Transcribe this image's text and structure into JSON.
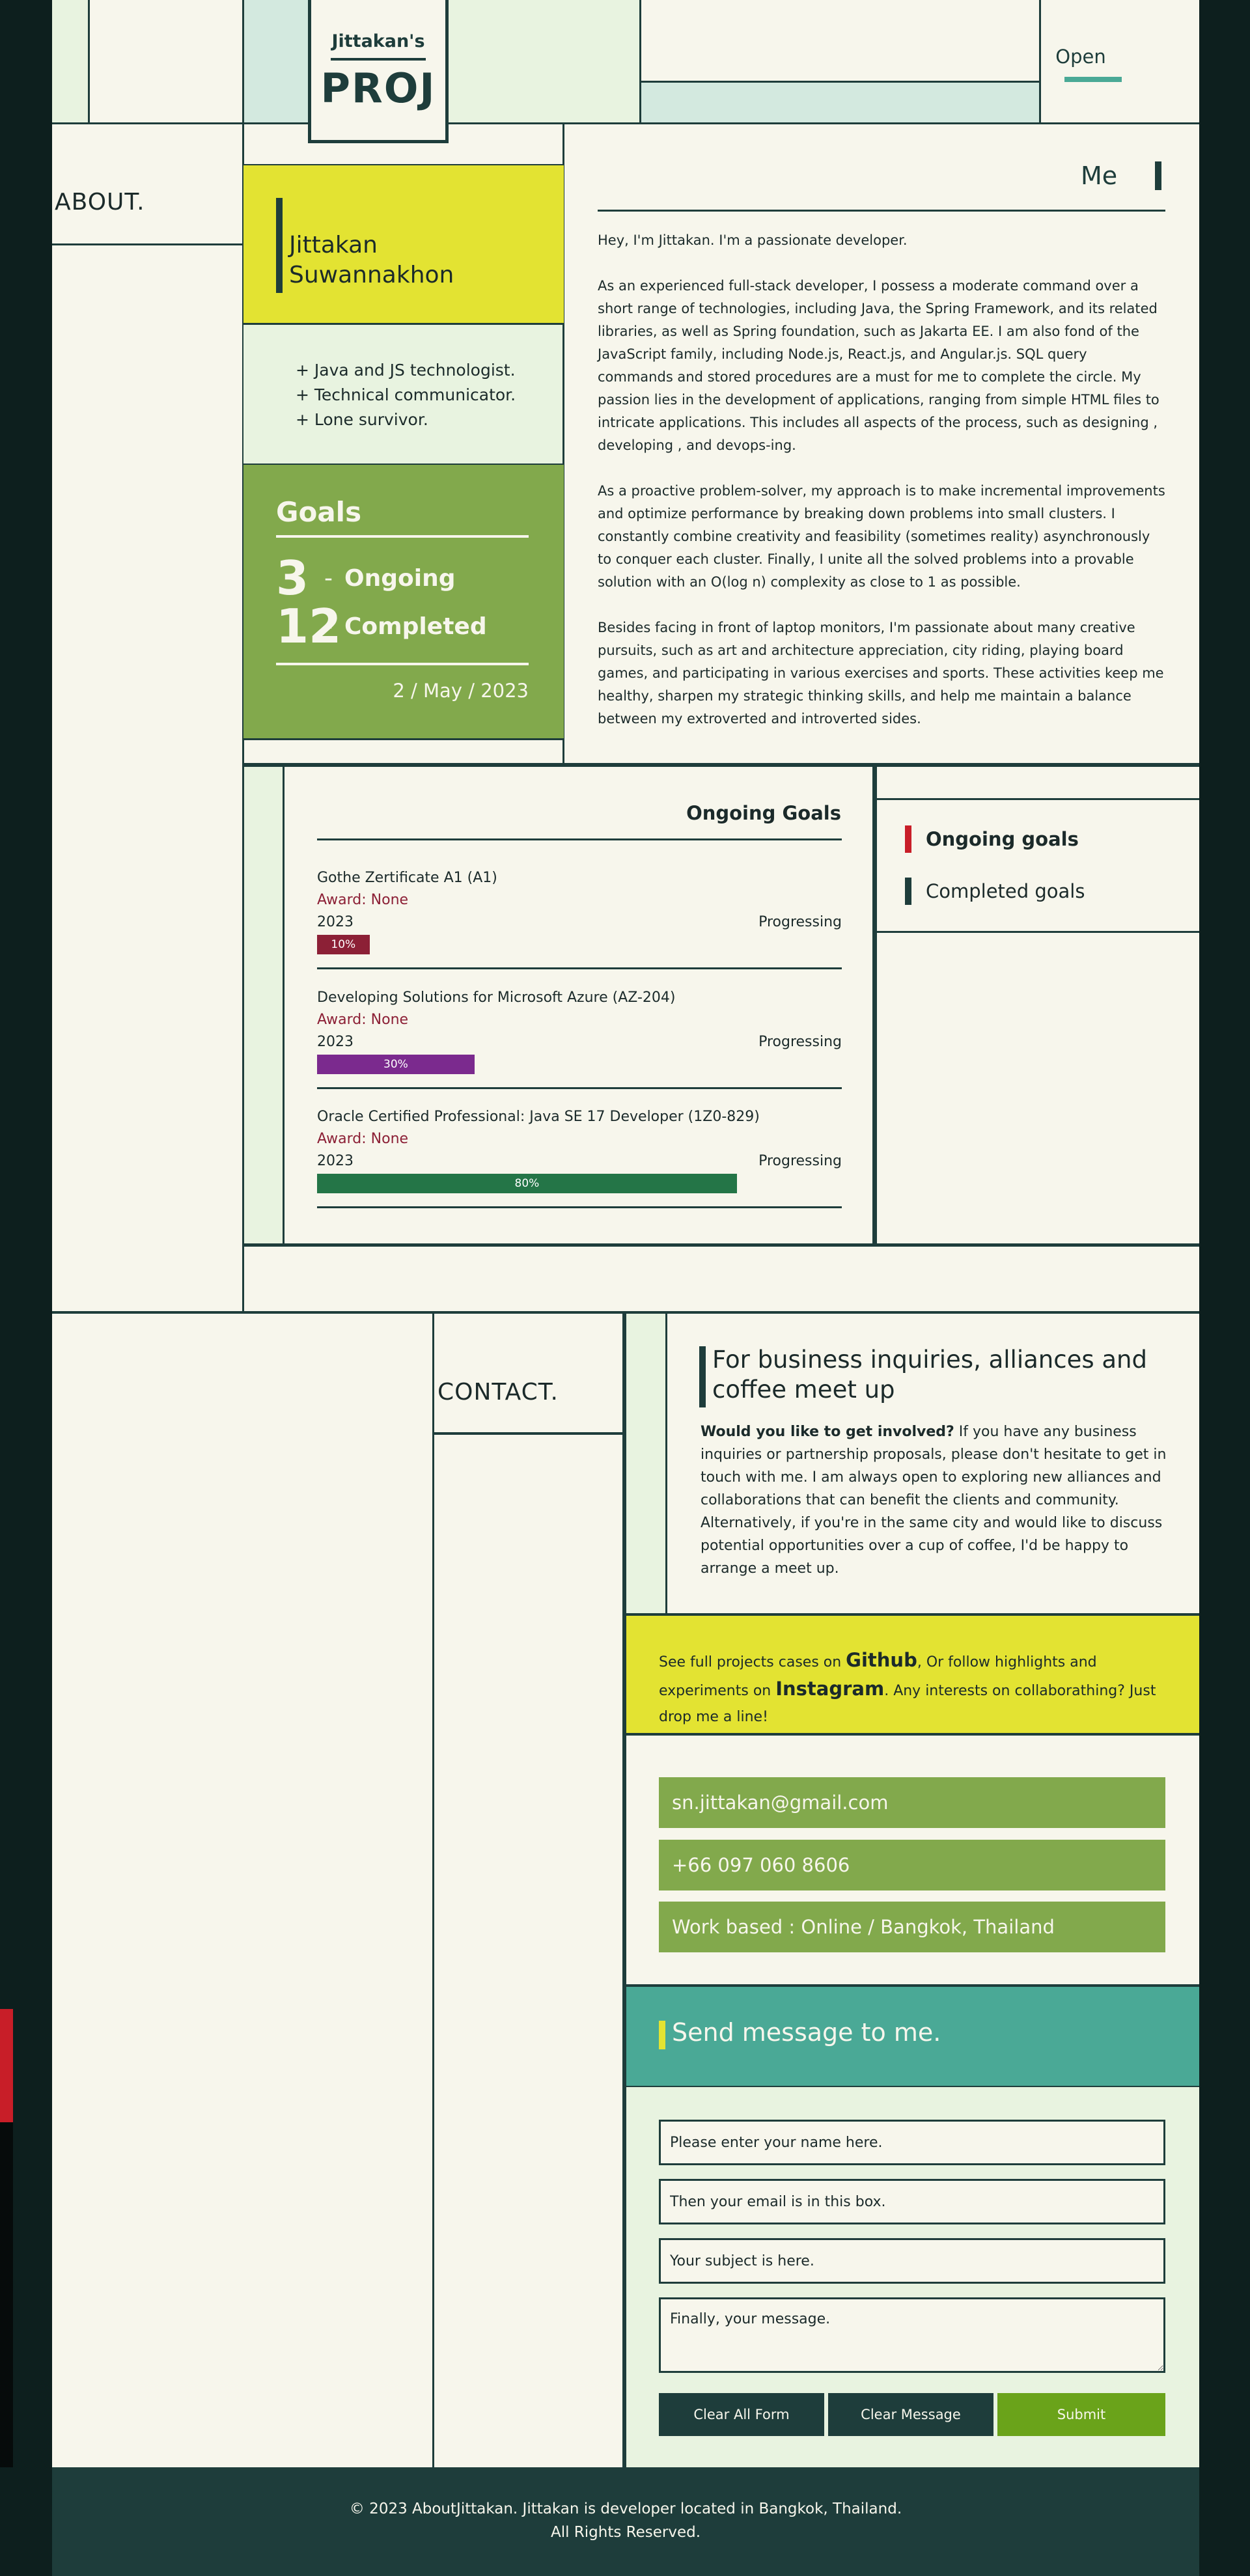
{
  "header": {
    "logo_small": "Jittakan's",
    "logo_big": "PROJ",
    "open_label": "Open"
  },
  "about": {
    "label": "ABOUT.",
    "name_line1": "Jittakan",
    "name_line2": "Suwannakhon",
    "bullets": [
      "+ Java and JS technologist.",
      "+ Technical communicator.",
      "+ Lone survivor."
    ],
    "goals": {
      "title": "Goals",
      "ongoing_count": "3",
      "ongoing_label": "Ongoing",
      "completed_count": "12",
      "completed_label": "Completed",
      "dash": "-",
      "date": "2 / May / 2023"
    }
  },
  "me": {
    "title": "Me",
    "paragraphs": [
      "Hey, I'm Jittakan. I'm a passionate developer.",
      "As an experienced full-stack developer, I possess a moderate command over a short range of technologies, including Java, the Spring Framework, and its related libraries, as well as Spring foundation, such as Jakarta EE. I am also fond of the JavaScript family, including Node.js, React.js, and Angular.js. SQL query commands and stored procedures are a must for me to complete the circle. My passion lies in the development of applications, ranging from simple HTML files to intricate applications. This includes all aspects of the process, such as designing , developing , and devops-ing.",
      "As a proactive problem-solver, my approach is to make incremental improvements and optimize performance by breaking down problems into small clusters. I constantly combine creativity and feasibility (sometimes reality) asynchronously to conquer each cluster. Finally, I unite all the solved problems into a provable solution with an O(log n) complexity as close to 1 as possible.",
      "Besides facing in front of laptop monitors, I'm passionate about many creative pursuits, such as art and architecture appreciation, city riding, playing board games, and participating in various exercises and sports. These activities keep me healthy, sharpen my strategic thinking skills, and help me maintain a balance between my extroverted and introverted sides."
    ]
  },
  "ongoing_goals": {
    "title": "Ongoing Goals",
    "items": [
      {
        "name": "Gothe Zertificate A1 (A1)",
        "award": "Award: None",
        "year": "2023",
        "status": "Progressing",
        "progress": 0.1,
        "progress_label": "10%",
        "color": "#8c2036"
      },
      {
        "name": "Developing Solutions for Microsoft Azure (AZ-204)",
        "award": "Award: None",
        "year": "2023",
        "status": "Progressing",
        "progress": 0.3,
        "progress_label": "30%",
        "color": "#7b2a8e"
      },
      {
        "name": "Oracle Certified Professional: Java SE 17 Developer (1Z0-829)",
        "award": "Award: None",
        "year": "2023",
        "status": "Progressing",
        "progress": 0.8,
        "progress_label": "80%",
        "color": "#247547"
      }
    ]
  },
  "legend": {
    "ongoing_label": "Ongoing goals",
    "ongoing_color": "#c81e28",
    "completed_label": "Completed goals",
    "completed_color": "#1e3d3b"
  },
  "contact": {
    "label": "CONTACT.",
    "biz_title": "For business inquiries, alliances and coffee meet up",
    "biz_lead": "Would you like to get involved?",
    "biz_body": " If you have any business inquiries or partnership proposals, please don't hesitate to get in touch with me. I am always open to exploring new alliances and collaborations that can benefit the clients and community. Alternatively, if you're in the same city and would like to discuss potential opportunities over a cup of coffee, I'd be happy to arrange a meet up.",
    "gh_pre": "See full projects cases on ",
    "gh_link": "Github",
    "gh_mid": ", Or follow highlights and experiments on ",
    "ig_link": "Instagram",
    "gh_post": ". Any interests on collaborathing? Just drop me a line!",
    "email": "sn.jittakan@gmail.com",
    "phone": "+66 097 060 8606",
    "location": "Work based : Online / Bangkok, Thailand"
  },
  "form": {
    "title": "Send message to me.",
    "name_placeholder": "Please enter your name here.",
    "email_placeholder": "Then your email is in this box.",
    "subject_placeholder": "Your subject is here.",
    "message_placeholder": "Finally, your message.",
    "clear_all_label": "Clear All Form",
    "clear_message_label": "Clear Message",
    "submit_label": "Submit",
    "clear_color": "#1e3d3b",
    "submit_color": "#6aa31a"
  },
  "footer": {
    "line1": "© 2023 AboutJittakan. Jittakan is developer located in Bangkok, Thailand.",
    "line2": "All Rights Reserved."
  }
}
